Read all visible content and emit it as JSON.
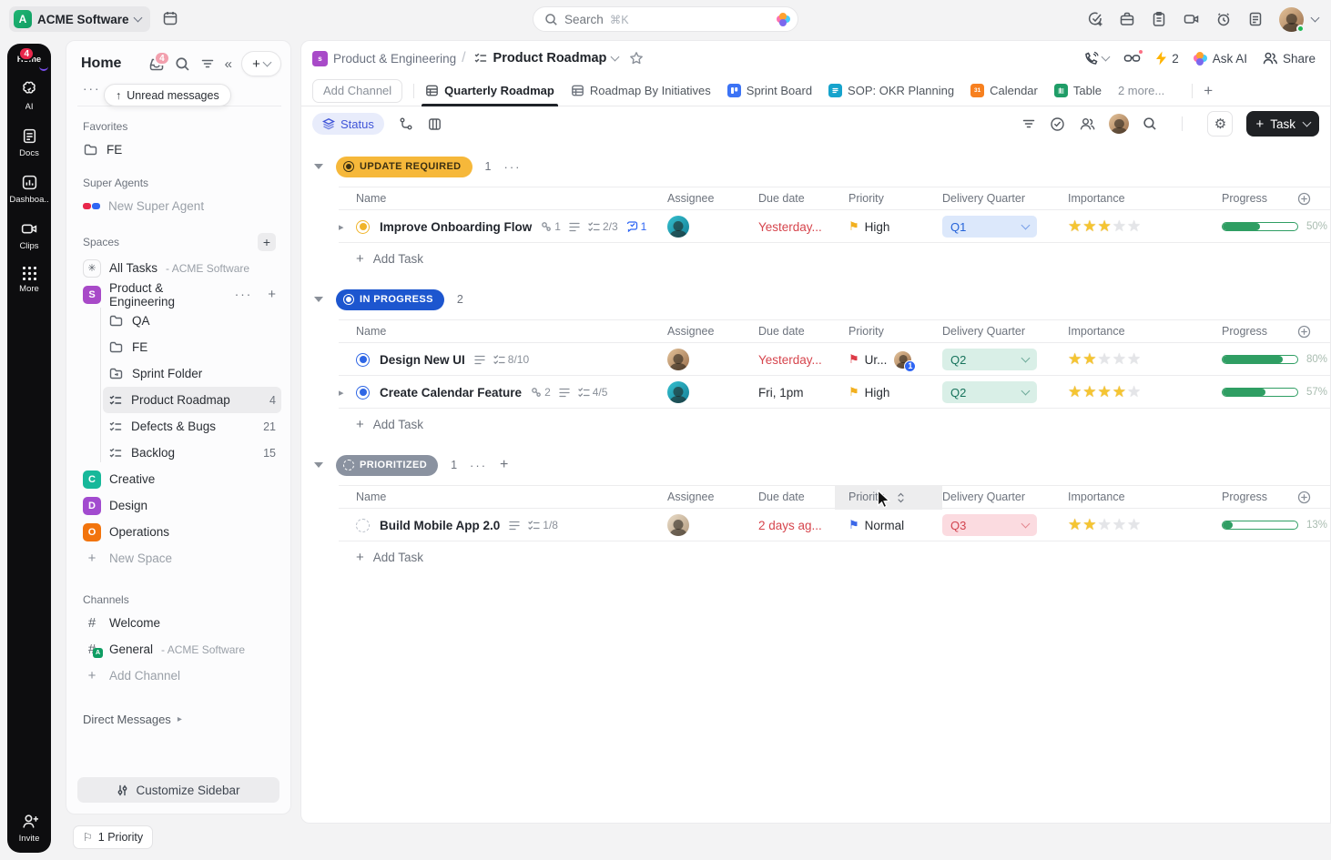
{
  "topbar": {
    "workspace": {
      "initial": "A",
      "name": "ACME Software"
    },
    "search": {
      "placeholder": "Search",
      "shortcut": "⌘K"
    }
  },
  "rail": {
    "home": {
      "label": "Home",
      "badge": "4"
    },
    "items": [
      {
        "label": "AI"
      },
      {
        "label": "Docs"
      },
      {
        "label": "Dashboa.."
      },
      {
        "label": "Clips"
      },
      {
        "label": "More"
      }
    ],
    "invite": "Invite"
  },
  "sidebar": {
    "title": "Home",
    "inbox_badge": "4",
    "more": "More",
    "unread": {
      "arrow": "↑",
      "label": "Unread messages"
    },
    "favorites_label": "Favorites",
    "fav_fe": "FE",
    "super_agents_label": "Super Agents",
    "new_super_agent": "New Super Agent",
    "spaces_label": "Spaces",
    "all_tasks": "All Tasks",
    "all_tasks_suffix": "- ACME Software",
    "pe_space": {
      "initial": "S",
      "label": "Product & Engineering"
    },
    "qa": "QA",
    "fe": "FE",
    "sprint_folder": "Sprint Folder",
    "product_roadmap": {
      "label": "Product Roadmap",
      "count": "4"
    },
    "defects": {
      "label": "Defects & Bugs",
      "count": "21"
    },
    "backlog": {
      "label": "Backlog",
      "count": "15"
    },
    "creative": {
      "initial": "C",
      "label": "Creative"
    },
    "design": {
      "initial": "D",
      "label": "Design"
    },
    "operations": {
      "initial": "O",
      "label": "Operations"
    },
    "new_space": "New Space",
    "channels_label": "Channels",
    "welcome": "Welcome",
    "general": {
      "label": "General",
      "suffix": "- ACME Software",
      "badge": "A"
    },
    "add_channel": "Add Channel",
    "direct_messages": "Direct Messages",
    "customize": "Customize Sidebar"
  },
  "footer": {
    "priority_pill": "1 Priority"
  },
  "header": {
    "breadcrumb_space": "Product & Engineering",
    "breadcrumb_sep": "/",
    "space_initial": "s",
    "title": "Product Roadmap",
    "bolt_count": "2",
    "ask_ai": "Ask AI",
    "share": "Share"
  },
  "tabs": {
    "add_channel": "Add Channel",
    "items": [
      {
        "label": "Quarterly Roadmap",
        "active": true
      },
      {
        "label": "Roadmap By Initiatives"
      },
      {
        "label": "Sprint Board"
      },
      {
        "label": "SOP: OKR Planning"
      },
      {
        "label": "Calendar"
      },
      {
        "label": "Table"
      },
      {
        "label": "2 more..."
      }
    ]
  },
  "toolbar": {
    "status_label": "Status",
    "task_label": "Task"
  },
  "columns": {
    "name": "Name",
    "assignee": "Assignee",
    "due": "Due date",
    "priority": "Priority",
    "quarter": "Delivery Quarter",
    "importance": "Importance",
    "progress": "Progress"
  },
  "colors": {
    "status_update_required_bg": "#f6b83a",
    "status_update_required_text": "#3c3012",
    "status_in_progress_bg": "#1d56cf",
    "status_in_progress_text": "#ffffff",
    "status_prioritized_bg": "#8a92a0",
    "status_prioritized_text": "#ffffff",
    "q1_bg": "#dce8fb",
    "q1_text": "#2563d9",
    "q2_bg": "#d9efe7",
    "q2_text": "#17735c",
    "q3_bg": "#fbdbe0",
    "q3_text": "#d2434e",
    "overdue_red": "#d6454d",
    "ontime_dark": "#2a2e34",
    "flag_high": "#f2b01f",
    "flag_urgent": "#dd3b47",
    "flag_normal": "#3b67e8",
    "ring_yellow": "#f0b429",
    "ring_blue": "#2e66e5",
    "progress_green": "#2f9e63"
  },
  "groups": [
    {
      "label": "UPDATE REQUIRED",
      "count": "1",
      "dots": "···",
      "add_task": "Add Task",
      "rows": [
        {
          "name": "Improve Onboarding Flow",
          "links": "1",
          "subtasks": "2/3",
          "comments": "1",
          "due": "Yesterday...",
          "priority": "High",
          "quarter": "Q1",
          "stars": 3,
          "progress_pct": "50%"
        }
      ]
    },
    {
      "label": "IN PROGRESS",
      "count": "2",
      "add_task": "Add Task",
      "rows": [
        {
          "name": "Design New UI",
          "subtasks": "8/10",
          "due": "Yesterday...",
          "priority": "Ur...",
          "collab_badge": "1",
          "quarter": "Q2",
          "stars": 2,
          "progress_pct": "80%"
        },
        {
          "name": "Create Calendar Feature",
          "links": "2",
          "subtasks": "4/5",
          "due": "Fri, 1pm",
          "priority": "High",
          "quarter": "Q2",
          "stars": 4,
          "progress_pct": "57%"
        }
      ]
    },
    {
      "label": "PRIORITIZED",
      "count": "1",
      "dots": "···",
      "add_task": "Add Task",
      "rows": [
        {
          "name": "Build Mobile App 2.0",
          "subtasks": "1/8",
          "due": "2 days ag...",
          "priority": "Normal",
          "quarter": "Q3",
          "stars": 2,
          "progress_pct": "13%"
        }
      ]
    }
  ]
}
